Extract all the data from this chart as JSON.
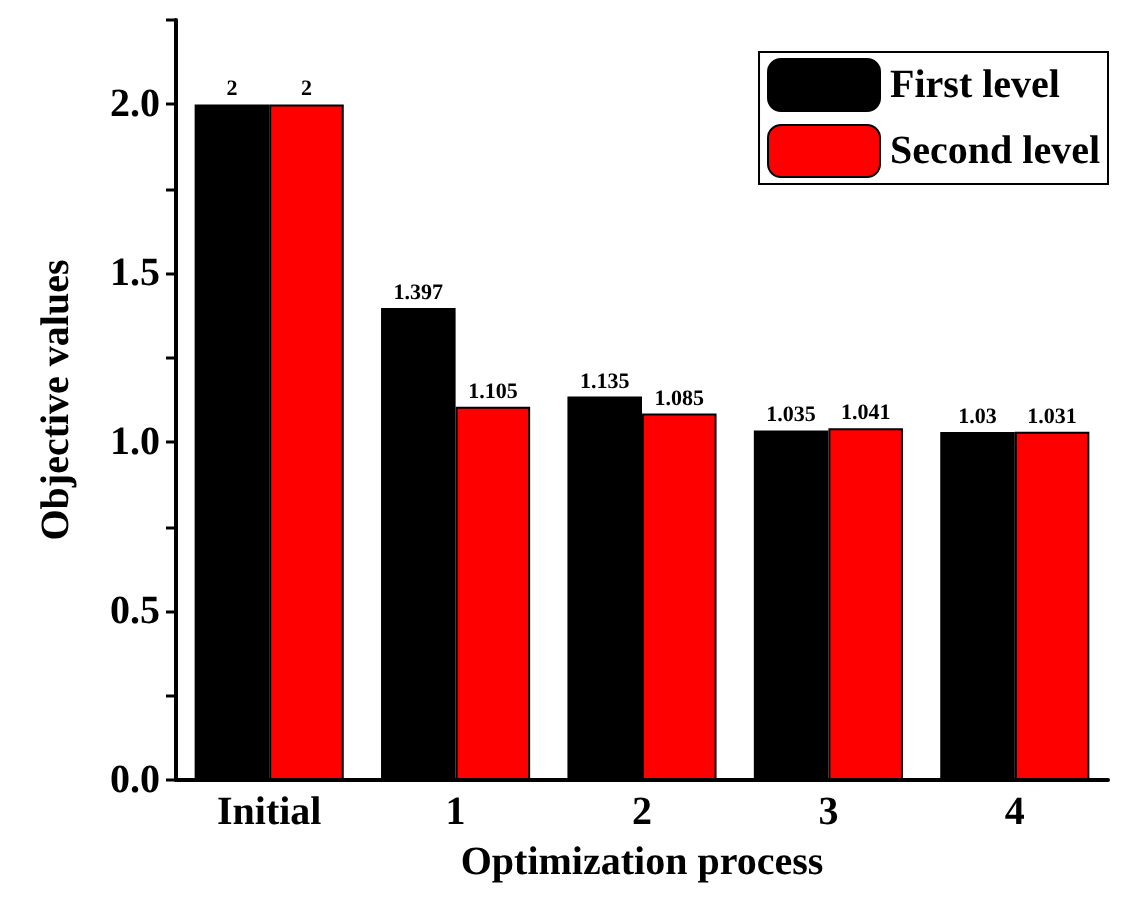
{
  "chart_data": {
    "type": "bar",
    "xlabel": "Optimization process",
    "ylabel": "Objective values",
    "categories": [
      "Initial",
      "1",
      "2",
      "3",
      "4"
    ],
    "series": [
      {
        "name": "First level",
        "color": "#000000",
        "values": [
          2,
          1.397,
          1.135,
          1.035,
          1.03
        ]
      },
      {
        "name": "Second level",
        "color": "#ff0000",
        "values": [
          2,
          1.105,
          1.085,
          1.041,
          1.031
        ]
      }
    ],
    "ylim": [
      0,
      2.25
    ],
    "yticks": [
      {
        "value": 0,
        "label": "0.0"
      },
      {
        "value": 0.25,
        "label": null
      },
      {
        "value": 0.5,
        "label": "0.5"
      },
      {
        "value": 0.75,
        "label": null
      },
      {
        "value": 1,
        "label": "1.0"
      },
      {
        "value": 1.25,
        "label": null
      },
      {
        "value": 1.5,
        "label": "1.5"
      },
      {
        "value": 1.75,
        "label": null
      },
      {
        "value": 2,
        "label": "2.0"
      },
      {
        "value": 2.25,
        "label": null
      }
    ],
    "data_labels": true,
    "grid": false,
    "legend": "top right"
  }
}
